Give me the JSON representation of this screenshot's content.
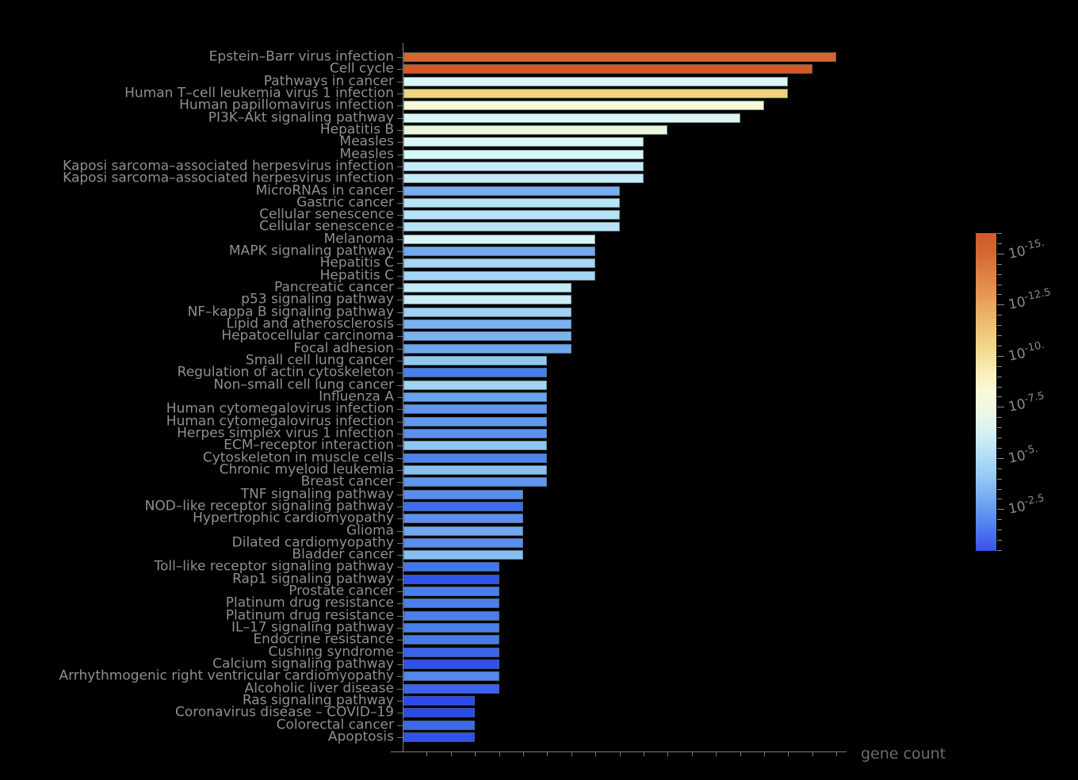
{
  "figure": {
    "background_color": "#000000",
    "text_color": "#8f8f8f",
    "axis_color": "#7d7d7d"
  },
  "chart_data": {
    "type": "bar",
    "orientation": "horizontal",
    "title": "",
    "xlabel": "gene count",
    "ylabel": "",
    "xlim": [
      0,
      18.9
    ],
    "x_ticks": {
      "count": 18,
      "step": 1,
      "labeled": false
    },
    "grid": false,
    "categories": [
      "Epstein–Barr virus infection",
      "Cell cycle",
      "Pathways in cancer",
      "Human T–cell leukemia virus 1 infection",
      "Human papillomavirus infection",
      "PI3K–Akt signaling pathway",
      "Hepatitis B",
      "Measles",
      "Measles",
      "Kaposi sarcoma–associated herpesvirus infection",
      "Kaposi sarcoma–associated herpesvirus infection",
      "MicroRNAs in cancer",
      "Gastric cancer",
      "Cellular senescence",
      "Cellular senescence",
      "Melanoma",
      "MAPK signaling pathway",
      "Hepatitis C",
      "Hepatitis C",
      "Pancreatic cancer",
      "p53 signaling pathway",
      "NF–kappa B signaling pathway",
      "Lipid and atherosclerosis",
      "Hepatocellular carcinoma",
      "Focal adhesion",
      "Small cell lung cancer",
      "Regulation of actin cytoskeleton",
      "Non–small cell lung cancer",
      "Influenza A",
      "Human cytomegalovirus infection",
      "Human cytomegalovirus infection",
      "Herpes simplex virus 1 infection",
      "ECM–receptor interaction",
      "Cytoskeleton in muscle cells",
      "Chronic myeloid leukemia",
      "Breast cancer",
      "TNF signaling pathway",
      "NOD–like receptor signaling pathway",
      "Hypertrophic cardiomyopathy",
      "Glioma",
      "Dilated cardiomyopathy",
      "Bladder cancer",
      "Toll–like receptor signaling pathway",
      "Rap1 signaling pathway",
      "Prostate cancer",
      "Platinum drug resistance",
      "Platinum drug resistance",
      "IL–17 signaling pathway",
      "Endocrine resistance",
      "Cushing syndrome",
      "Calcium signaling pathway",
      "Arrhythmogenic right ventricular cardiomyopathy",
      "Alcoholic liver disease",
      "Ras signaling pathway",
      "Coronavirus disease – COVID–19",
      "Colorectal cancer",
      "Apoptosis"
    ],
    "values": [
      18,
      17,
      16,
      16,
      15,
      14,
      11,
      10,
      10,
      10,
      10,
      9,
      9,
      9,
      9,
      8,
      8,
      8,
      8,
      7,
      7,
      7,
      7,
      7,
      7,
      6,
      6,
      6,
      6,
      6,
      6,
      6,
      6,
      6,
      6,
      6,
      5,
      5,
      5,
      5,
      5,
      5,
      4,
      4,
      4,
      4,
      4,
      4,
      4,
      4,
      4,
      4,
      4,
      3,
      3,
      3,
      3
    ],
    "bar_colors": [
      "#d4682f",
      "#d35a28",
      "#d9f7f6",
      "#efd37d",
      "#f8fada",
      "#dcf7f5",
      "#e9f6dc",
      "#d9f6f7",
      "#d9f6f7",
      "#c4eaf8",
      "#c4eaf8",
      "#74aff0",
      "#b9e4f8",
      "#b7e2f8",
      "#b7e2f8",
      "#d8f5f7",
      "#73aaef",
      "#a5d6f5",
      "#a5d6f5",
      "#c5ebf8",
      "#c8ecf8",
      "#9ed1f4",
      "#7ab3f0",
      "#7ab3f0",
      "#6da7ef",
      "#93c8f3",
      "#4a7eed",
      "#a1d3f4",
      "#6aa3ef",
      "#6096ee",
      "#6096ee",
      "#5c91ee",
      "#8fc5f2",
      "#4f84ed",
      "#87c0f2",
      "#6096ee",
      "#5a8eee",
      "#3f6cec",
      "#5c90ee",
      "#6fa8ef",
      "#5b8fee",
      "#86c0f2",
      "#4377ed",
      "#3054eb",
      "#4a7eed",
      "#4a7eed",
      "#4a7eed",
      "#4a7eed",
      "#477bed",
      "#3b64ec",
      "#3050eb",
      "#5586ee",
      "#3b64ec",
      "#2c4aeb",
      "#2c4aeb",
      "#3e6aec",
      "#3151eb"
    ],
    "legend": {
      "position": "right",
      "meaning": "p-value color scale",
      "base": "10",
      "tick_exponents": [
        "-15.",
        "-12.5",
        "-10.",
        "-7.5",
        "-5.",
        "-2.5"
      ],
      "gradient_top_to_bottom": [
        "#cd5a2c",
        "#dc7d41",
        "#eebb6e",
        "#f9efb9",
        "#fbf9d8",
        "#d8f3f2",
        "#bce4f8",
        "#99ccf4",
        "#74a9f0",
        "#3a51eb"
      ]
    }
  }
}
